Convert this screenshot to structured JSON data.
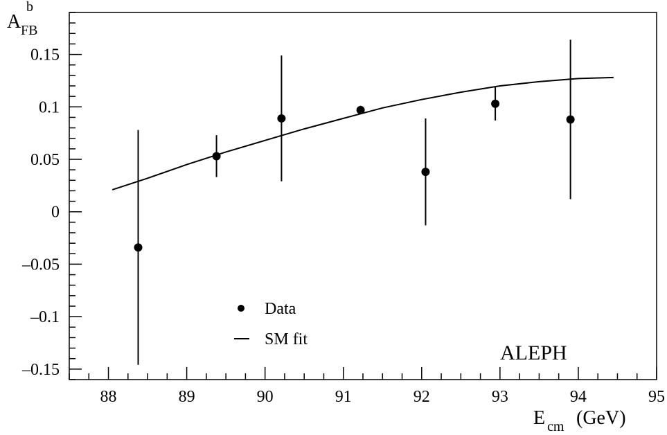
{
  "chart_data": {
    "type": "scatter",
    "ylabel": {
      "main": "A",
      "sub": "FB",
      "sup": "b"
    },
    "xlabel": {
      "main": "E",
      "sub": "cm",
      "unit": "(GeV)"
    },
    "annotation": "ALEPH",
    "xlim": [
      87.5,
      95
    ],
    "ylim": [
      -0.16,
      0.19
    ],
    "x_ticks": [
      "88",
      "89",
      "90",
      "91",
      "92",
      "93",
      "94",
      "95"
    ],
    "y_ticks": [
      "-0.15",
      "-0.1",
      "-0.05",
      "0",
      "0.05",
      "0.1",
      "0.15"
    ],
    "legend": {
      "position": "bottom-left",
      "entries": [
        "Data",
        "SM fit"
      ]
    },
    "series": [
      {
        "name": "Data",
        "kind": "points-with-errors",
        "points": [
          {
            "x": 88.38,
            "y": -0.034,
            "err": 0.112
          },
          {
            "x": 89.38,
            "y": 0.053,
            "err": 0.02
          },
          {
            "x": 90.21,
            "y": 0.089,
            "err": 0.06
          },
          {
            "x": 91.22,
            "y": 0.097,
            "err": 0.004
          },
          {
            "x": 92.05,
            "y": 0.038,
            "err": 0.051
          },
          {
            "x": 92.94,
            "y": 0.103,
            "err": 0.016
          },
          {
            "x": 93.9,
            "y": 0.088,
            "err": 0.076
          }
        ]
      },
      {
        "name": "SM fit",
        "kind": "line",
        "x": [
          88.05,
          88.5,
          89.0,
          89.5,
          90.0,
          90.5,
          91.0,
          91.5,
          92.0,
          92.5,
          93.0,
          93.5,
          94.0,
          94.45
        ],
        "y": [
          0.021,
          0.032,
          0.045,
          0.057,
          0.068,
          0.079,
          0.089,
          0.099,
          0.107,
          0.114,
          0.12,
          0.124,
          0.127,
          0.128
        ]
      }
    ]
  }
}
